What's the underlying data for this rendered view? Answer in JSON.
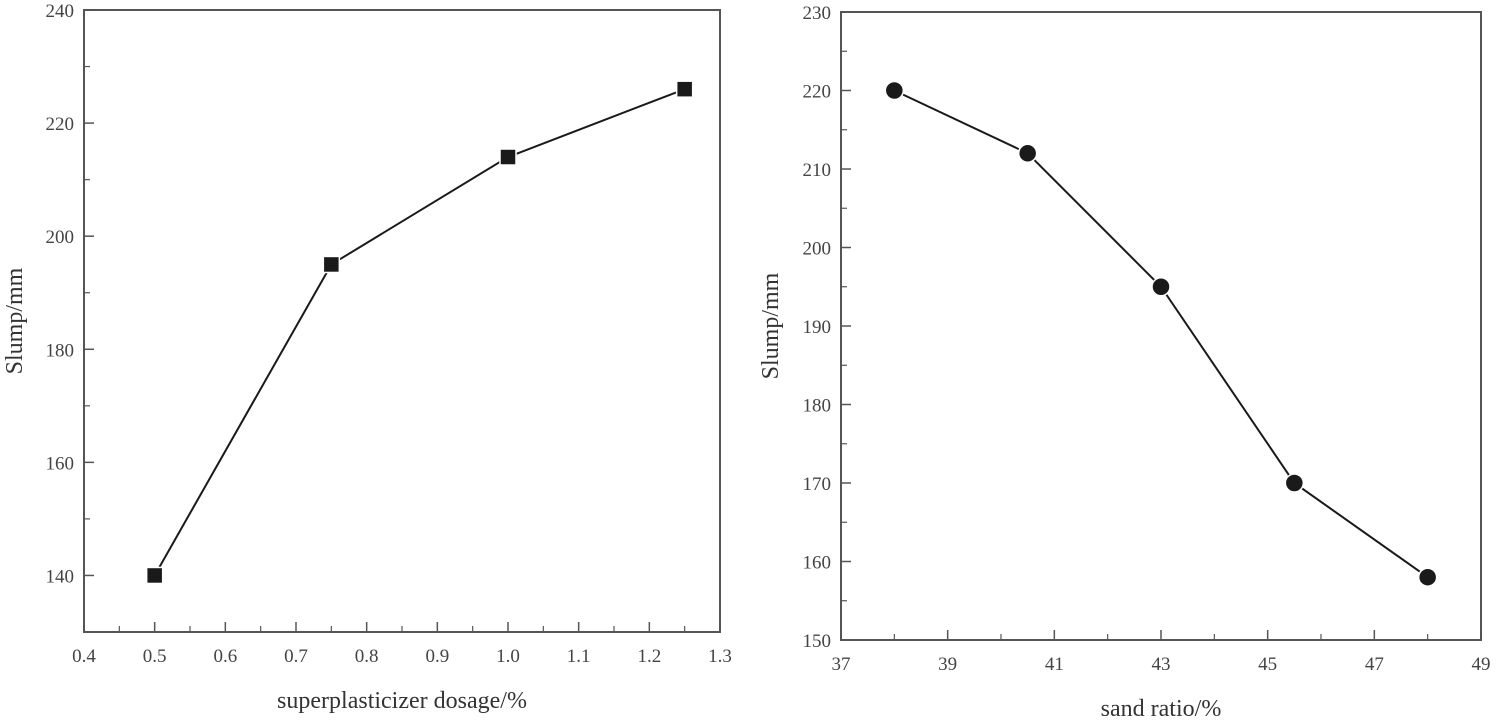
{
  "chart_data": [
    {
      "type": "line",
      "title": "",
      "xlabel": "superplasticizer dosage/%",
      "ylabel": "Slump/mm",
      "xlim": [
        0.4,
        1.3
      ],
      "ylim": [
        130,
        240
      ],
      "x_ticks": [
        "0.4",
        "0.5",
        "0.6",
        "0.7",
        "0.8",
        "0.9",
        "1.0",
        "1.1",
        "1.2",
        "1.3"
      ],
      "y_ticks": [
        "140",
        "160",
        "180",
        "200",
        "220",
        "240"
      ],
      "grid": false,
      "marker": "square",
      "series": [
        {
          "name": "Slump",
          "x": [
            0.5,
            0.75,
            1.0,
            1.25
          ],
          "values": [
            140,
            195,
            214,
            226
          ]
        }
      ]
    },
    {
      "type": "line",
      "title": "",
      "xlabel": "sand ratio/%",
      "ylabel": "Slump/mm",
      "xlim": [
        37,
        49
      ],
      "ylim": [
        150,
        230
      ],
      "x_ticks": [
        "37",
        "39",
        "41",
        "43",
        "45",
        "47",
        "49"
      ],
      "y_ticks": [
        "150",
        "160",
        "170",
        "180",
        "190",
        "200",
        "210",
        "220",
        "230"
      ],
      "grid": false,
      "marker": "circle",
      "series": [
        {
          "name": "Slump",
          "x": [
            38,
            40.5,
            43,
            45.5,
            48
          ],
          "values": [
            220,
            212,
            195,
            170,
            158
          ]
        }
      ]
    }
  ],
  "colors": {
    "line": "#1a1a1a",
    "axis": "#555555",
    "marker": "#1a1a1a"
  }
}
